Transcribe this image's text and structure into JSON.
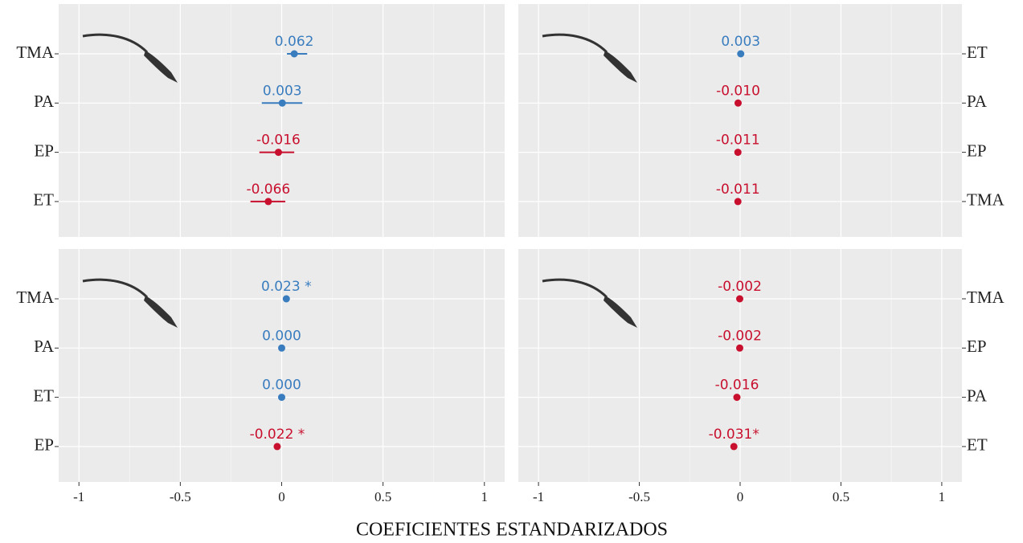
{
  "xlabel": "COEFICIENTES ESTANDARIZADOS",
  "chart_data": [
    {
      "type": "dot",
      "yaxis_side": "left",
      "categories": [
        "TMA",
        "PA",
        "EP",
        "ET"
      ],
      "values": [
        0.062,
        0.003,
        -0.016,
        -0.066
      ],
      "value_labels": [
        "0.062",
        "0.003",
        "-0.016",
        "-0.066"
      ],
      "ci_low": [
        0.026,
        -0.098,
        -0.11,
        -0.154
      ],
      "ci_high": [
        0.126,
        0.102,
        0.062,
        0.018
      ],
      "colors": [
        "#3a7dbf",
        "#3a7dbf",
        "#c8102e",
        "#c8102e"
      ],
      "xlim": [
        -1.1,
        1.1
      ],
      "xticks": [
        -1,
        -0.5,
        0,
        0.5,
        1
      ]
    },
    {
      "type": "dot",
      "yaxis_side": "right",
      "categories": [
        "ET",
        "PA",
        "EP",
        "TMA"
      ],
      "values": [
        0.003,
        -0.01,
        -0.011,
        -0.011
      ],
      "value_labels": [
        "0.003",
        "-0.010",
        "-0.011",
        "-0.011"
      ],
      "colors": [
        "#3a7dbf",
        "#c8102e",
        "#c8102e",
        "#c8102e"
      ],
      "xlim": [
        -1.1,
        1.1
      ],
      "xticks": [
        -1,
        -0.5,
        0,
        0.5,
        1
      ]
    },
    {
      "type": "dot",
      "yaxis_side": "left",
      "categories": [
        "TMA",
        "PA",
        "ET",
        "EP"
      ],
      "values": [
        0.023,
        0,
        0,
        -0.022
      ],
      "value_labels": [
        "0.023 *",
        "0.000",
        "0.000",
        "-0.022 *"
      ],
      "colors": [
        "#3a7dbf",
        "#3a7dbf",
        "#3a7dbf",
        "#c8102e"
      ],
      "xlim": [
        -1.1,
        1.1
      ],
      "xticks": [
        -1,
        -0.5,
        0,
        0.5,
        1
      ]
    },
    {
      "type": "dot",
      "yaxis_side": "right",
      "categories": [
        "TMA",
        "EP",
        "PA",
        "ET"
      ],
      "values": [
        -0.002,
        -0.002,
        -0.016,
        -0.031
      ],
      "value_labels": [
        "-0.002",
        "-0.002",
        "-0.016",
        "-0.031*"
      ],
      "colors": [
        "#c8102e",
        "#c8102e",
        "#c8102e",
        "#c8102e"
      ],
      "xlim": [
        -1.1,
        1.1
      ],
      "xticks": [
        -1,
        -0.5,
        0,
        0.5,
        1
      ]
    }
  ]
}
